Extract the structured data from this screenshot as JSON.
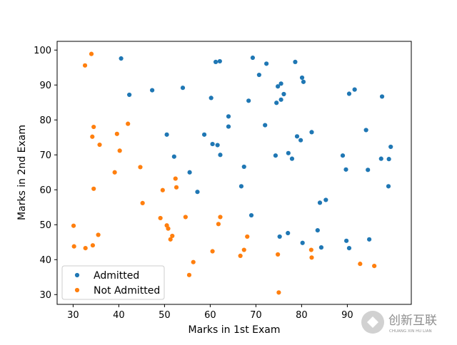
{
  "chart_data": {
    "type": "scatter",
    "xlabel": "Marks in 1st Exam",
    "ylabel": "Marks in 2nd Exam",
    "xlim": [
      26.5,
      104
    ],
    "ylim": [
      27.2,
      102.5
    ],
    "xticks": [
      30,
      40,
      50,
      60,
      70,
      80,
      90
    ],
    "yticks": [
      30,
      40,
      50,
      60,
      70,
      80,
      90,
      100
    ],
    "grid": false,
    "legend_position": "lower-left",
    "series": [
      {
        "name": "Admitted",
        "color": "#1f77b4",
        "points": [
          [
            40.5,
            97.6
          ],
          [
            61.2,
            96.6
          ],
          [
            62.1,
            96.8
          ],
          [
            69.3,
            97.8
          ],
          [
            72.3,
            96.1
          ],
          [
            78.6,
            96.6
          ],
          [
            70.7,
            92.9
          ],
          [
            80.1,
            92.1
          ],
          [
            80.4,
            90.9
          ],
          [
            42.3,
            87.2
          ],
          [
            47.3,
            88.5
          ],
          [
            54.0,
            89.2
          ],
          [
            60.2,
            86.3
          ],
          [
            68.4,
            85.5
          ],
          [
            74.8,
            89.6
          ],
          [
            75.5,
            90.4
          ],
          [
            76.1,
            87.4
          ],
          [
            74.5,
            84.9
          ],
          [
            75.5,
            85.8
          ],
          [
            90.4,
            87.5
          ],
          [
            91.6,
            88.7
          ],
          [
            97.6,
            86.7
          ],
          [
            64.0,
            81.0
          ],
          [
            64.0,
            78.1
          ],
          [
            72.0,
            78.5
          ],
          [
            82.2,
            76.5
          ],
          [
            94.1,
            77.1
          ],
          [
            50.5,
            75.8
          ],
          [
            58.7,
            75.8
          ],
          [
            60.5,
            73.1
          ],
          [
            61.6,
            72.8
          ],
          [
            79.0,
            75.3
          ],
          [
            79.8,
            74.2
          ],
          [
            52.1,
            69.5
          ],
          [
            62.2,
            70.0
          ],
          [
            74.3,
            69.8
          ],
          [
            77.1,
            70.5
          ],
          [
            77.9,
            68.9
          ],
          [
            89.0,
            69.8
          ],
          [
            97.4,
            68.9
          ],
          [
            99.1,
            68.8
          ],
          [
            99.5,
            72.3
          ],
          [
            67.4,
            66.6
          ],
          [
            89.7,
            65.8
          ],
          [
            94.5,
            65.7
          ],
          [
            55.5,
            65.0
          ],
          [
            57.2,
            59.4
          ],
          [
            66.8,
            61.0
          ],
          [
            99.0,
            61.0
          ],
          [
            84.0,
            56.3
          ],
          [
            85.3,
            57.1
          ],
          [
            69.0,
            52.7
          ],
          [
            83.5,
            48.4
          ],
          [
            75.2,
            46.6
          ],
          [
            77.0,
            47.6
          ],
          [
            80.2,
            44.8
          ],
          [
            89.8,
            45.4
          ],
          [
            94.8,
            45.8
          ],
          [
            84.3,
            43.5
          ],
          [
            90.4,
            43.3
          ]
        ]
      },
      {
        "name": "Not Admitted",
        "color": "#ff7f0e",
        "points": [
          [
            34.0,
            98.9
          ],
          [
            32.6,
            95.6
          ],
          [
            42.0,
            78.9
          ],
          [
            34.5,
            78.0
          ],
          [
            34.2,
            75.2
          ],
          [
            39.6,
            76.0
          ],
          [
            35.8,
            72.9
          ],
          [
            40.2,
            71.2
          ],
          [
            44.7,
            66.5
          ],
          [
            39.1,
            65.0
          ],
          [
            34.5,
            60.3
          ],
          [
            52.4,
            63.2
          ],
          [
            52.6,
            60.7
          ],
          [
            49.6,
            59.9
          ],
          [
            45.2,
            56.2
          ],
          [
            49.1,
            51.9
          ],
          [
            54.6,
            52.2
          ],
          [
            62.2,
            52.2
          ],
          [
            61.8,
            50.2
          ],
          [
            50.5,
            49.8
          ],
          [
            50.8,
            48.9
          ],
          [
            30.1,
            49.7
          ],
          [
            51.7,
            46.8
          ],
          [
            51.3,
            45.8
          ],
          [
            35.5,
            47.1
          ],
          [
            68.1,
            46.6
          ],
          [
            30.2,
            43.8
          ],
          [
            32.7,
            43.3
          ],
          [
            34.3,
            44.1
          ],
          [
            60.5,
            42.4
          ],
          [
            67.4,
            42.8
          ],
          [
            82.1,
            42.8
          ],
          [
            66.6,
            41.1
          ],
          [
            74.8,
            41.5
          ],
          [
            82.2,
            40.6
          ],
          [
            56.3,
            39.3
          ],
          [
            92.8,
            38.8
          ],
          [
            95.9,
            38.2
          ],
          [
            55.4,
            35.6
          ],
          [
            75.0,
            30.6
          ]
        ]
      }
    ]
  },
  "watermark": {
    "name": "创新互联",
    "subtitle": "CHUANG XIN HU LIAN"
  }
}
